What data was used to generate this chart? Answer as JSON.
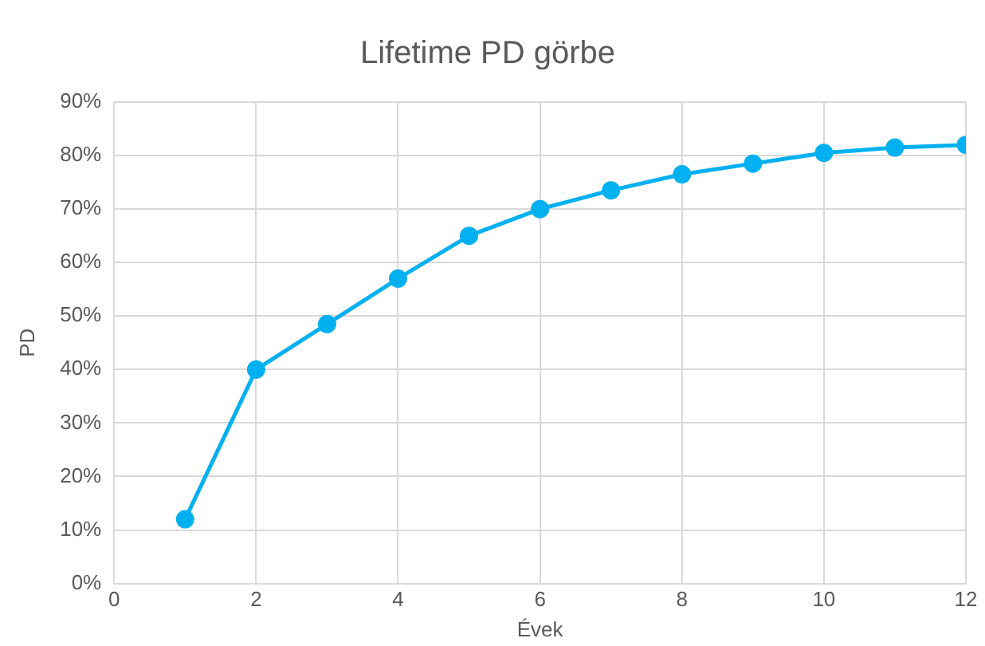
{
  "chart_data": {
    "type": "line",
    "title": "Lifetime PD görbe",
    "xlabel": "Évek",
    "ylabel": "PD",
    "x": [
      1,
      2,
      3,
      4,
      5,
      6,
      7,
      8,
      9,
      10,
      11,
      12
    ],
    "series": [
      {
        "color": "#00b0f0",
        "values": [
          12,
          40,
          48.5,
          57,
          65,
          70,
          73.5,
          76.5,
          78.5,
          80.5,
          81.5,
          82
        ]
      }
    ],
    "xlim": [
      0,
      12
    ],
    "xticks": [
      0,
      2,
      4,
      6,
      8,
      10,
      12
    ],
    "ylim": [
      0,
      90
    ],
    "yticks": [
      {
        "value": 0,
        "label": "0%"
      },
      {
        "value": 10,
        "label": "10%"
      },
      {
        "value": 20,
        "label": "20%"
      },
      {
        "value": 30,
        "label": "30%"
      },
      {
        "value": 40,
        "label": "40%"
      },
      {
        "value": 50,
        "label": "50%"
      },
      {
        "value": 60,
        "label": "60%"
      },
      {
        "value": 70,
        "label": "70%"
      },
      {
        "value": 80,
        "label": "80%"
      },
      {
        "value": 90,
        "label": "90%"
      }
    ],
    "grid": true,
    "marker": "circle",
    "legend": false
  }
}
